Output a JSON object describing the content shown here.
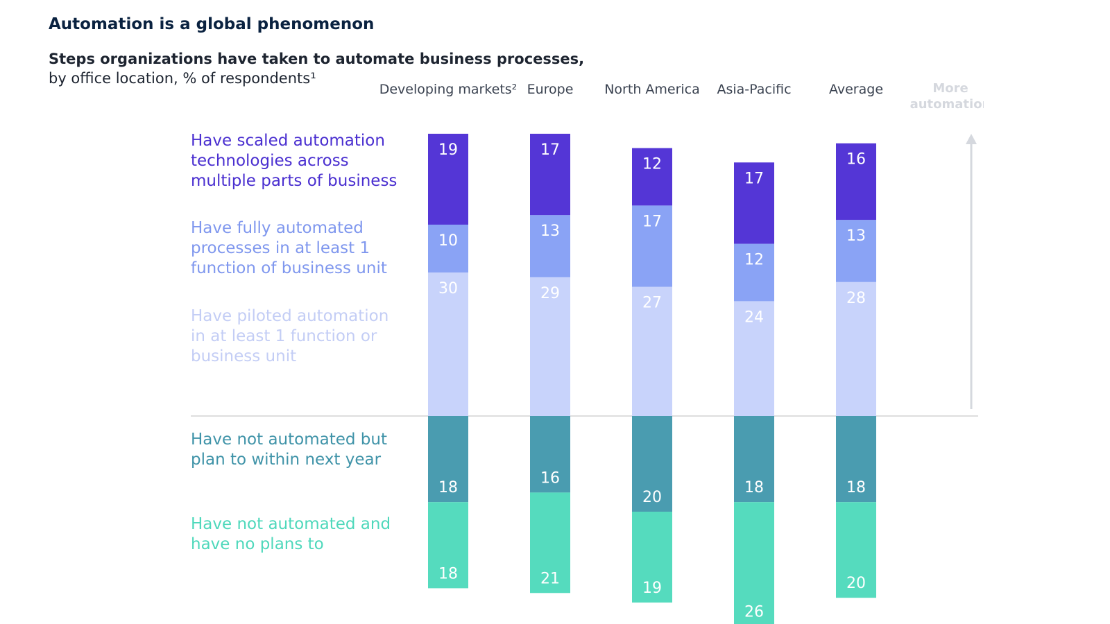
{
  "title": "Automation is a global phenomenon",
  "subtitle_line1": "Steps organizations have taken to automate business processes,",
  "subtitle_line2": "by office location, % of respondents¹",
  "more_label_line1": "More",
  "more_label_line2": "automation",
  "colors": {
    "scaled": "#5436d6",
    "fully": "#8aa3f5",
    "piloted": "#c8d3fb",
    "plan": "#4a9cb0",
    "noplans": "#55dbbe",
    "baseline": "#dddddd",
    "arrow": "#d5d8de"
  },
  "chart_data": {
    "type": "bar",
    "stacked": true,
    "diverging": true,
    "categories": [
      "Developing markets²",
      "Europe",
      "North America",
      "Asia-Pacific",
      "Average"
    ],
    "series": [
      {
        "key": "scaled",
        "name": "Have scaled automation technologies across multiple parts of business",
        "name_lines": [
          "Have scaled automation",
          "technologies across",
          "multiple parts of business"
        ],
        "direction": "up",
        "values": [
          19,
          17,
          12,
          17,
          16
        ]
      },
      {
        "key": "fully",
        "name": "Have fully automated processes in at least 1 function of business unit",
        "name_lines": [
          "Have fully automated",
          "processes in at least 1",
          "function of business unit"
        ],
        "direction": "up",
        "values": [
          10,
          13,
          17,
          12,
          13
        ]
      },
      {
        "key": "piloted",
        "name": "Have piloted automation in at least 1 function or business unit",
        "name_lines": [
          "Have piloted automation",
          "in at least 1 function or",
          "business unit"
        ],
        "direction": "up",
        "values": [
          30,
          29,
          27,
          24,
          28
        ]
      },
      {
        "key": "plan",
        "name": "Have not automated but plan to within next year",
        "name_lines": [
          "Have not automated but",
          "plan to within next year"
        ],
        "direction": "down",
        "values": [
          18,
          16,
          20,
          18,
          18
        ]
      },
      {
        "key": "noplans",
        "name": "Have not automated and have no plans to",
        "name_lines": [
          "Have not automated and",
          "have no plans to"
        ],
        "direction": "down",
        "values": [
          18,
          21,
          19,
          26,
          20
        ]
      }
    ]
  }
}
